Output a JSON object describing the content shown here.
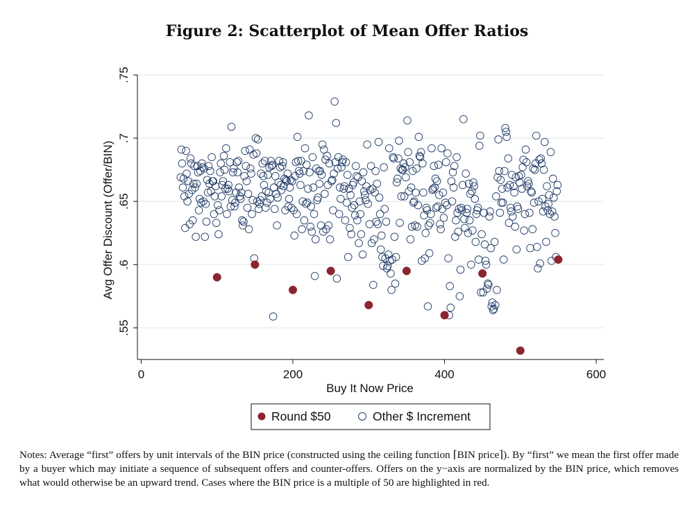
{
  "figure": {
    "title": "Figure 2: Scatterplot of Mean Offer Ratios",
    "notes": "Notes: Average “first” offers by unit intervals of the BIN price (constructed using the ceiling function ⌈BIN price⌉). By “first” we mean the first offer made by a buyer which may initiate a sequence of subsequent offers and counter-offers. Offers on the y−axis are normalized by the BIN price, which removes what would otherwise be an upward trend. Cases where the BIN price is a multiple of 50 are highlighted in red."
  },
  "colors": {
    "highlight": "#8b2530",
    "marker_edge": "#1f3a66",
    "grid": "#e4ecee",
    "axis": "#111111"
  },
  "chart_data": {
    "type": "scatter",
    "title": "",
    "xlabel": "Buy It Now Price",
    "ylabel": "Avg Offer Discount (Offer/BIN)",
    "xlim": [
      -5,
      610
    ],
    "ylim": [
      0.525,
      0.75
    ],
    "xticks": [
      0,
      200,
      400,
      600
    ],
    "yticks": [
      0.55,
      0.6,
      0.65,
      0.7,
      0.75
    ],
    "ytick_labels": [
      ".55",
      ".6",
      ".65",
      ".7",
      ".75"
    ],
    "grid": true,
    "legend": {
      "placement": "bottom-center",
      "entries": [
        "Round $50",
        "Other $ Increment"
      ]
    },
    "series": [
      {
        "name": "Round $50",
        "marker": "filled-circle",
        "x": [
          100,
          150,
          200,
          250,
          300,
          350,
          400,
          450,
          500,
          550
        ],
        "y": [
          0.59,
          0.6,
          0.58,
          0.595,
          0.568,
          0.595,
          0.56,
          0.593,
          0.532,
          0.604
        ]
      },
      {
        "name": "Other $ Increment",
        "marker": "hollow-circle",
        "x_start": 52,
        "x_end": 549,
        "exclude_x": [
          100,
          150,
          200,
          250,
          300,
          350,
          400,
          450,
          500
        ],
        "y": [
          0.669,
          0.691,
          0.68,
          0.661,
          0.668,
          0.654,
          0.629,
          0.69,
          0.672,
          0.65,
          0.666,
          0.656,
          0.632,
          0.684,
          0.68,
          0.659,
          0.635,
          0.664,
          0.678,
          0.661,
          0.622,
          0.664,
          0.678,
          0.673,
          0.643,
          0.652,
          0.674,
          0.649,
          0.68,
          0.677,
          0.65,
          0.676,
          0.622,
          0.648,
          0.634,
          0.667,
          0.657,
          0.678,
          0.664,
          0.674,
          0.658,
          0.685,
          0.666,
          0.666,
          0.64,
          0.654,
          0.662,
          0.633,
          0.647,
          0.624,
          0.643,
          0.673,
          0.68,
          0.654,
          0.663,
          0.666,
          0.686,
          0.675,
          0.66,
          0.692,
          0.64,
          0.66,
          0.663,
          0.658,
          0.681,
          0.646,
          0.709,
          0.651,
          0.673,
          0.676,
          0.646,
          0.649,
          0.657,
          0.681,
          0.673,
          0.682,
          0.661,
          0.654,
          0.652,
          0.657,
          0.635,
          0.631,
          0.634,
          0.67,
          0.69,
          0.678,
          0.666,
          0.645,
          0.656,
          0.628,
          0.691,
          0.676,
          0.672,
          0.64,
          0.651,
          0.687,
          0.605,
          0.7,
          0.688,
          0.65,
          0.699,
          0.644,
          0.648,
          0.651,
          0.672,
          0.654,
          0.68,
          0.67,
          0.663,
          0.682,
          0.645,
          0.658,
          0.649,
          0.671,
          0.657,
          0.677,
          0.652,
          0.682,
          0.678,
          0.679,
          0.559,
          0.661,
          0.644,
          0.67,
          0.656,
          0.631,
          0.653,
          0.665,
          0.682,
          0.677,
          0.663,
          0.659,
          0.678,
          0.681,
          0.662,
          0.668,
          0.643,
          0.667,
          0.666,
          0.672,
          0.646,
          0.652,
          0.661,
          0.667,
          0.645,
          0.666,
          0.643,
          0.623,
          0.67,
          0.681,
          0.64,
          0.701,
          0.682,
          0.674,
          0.672,
          0.663,
          0.682,
          0.628,
          0.65,
          0.674,
          0.635,
          0.692,
          0.648,
          0.679,
          0.649,
          0.66,
          0.718,
          0.673,
          0.63,
          0.646,
          0.626,
          0.685,
          0.661,
          0.64,
          0.591,
          0.62,
          0.676,
          0.651,
          0.653,
          0.674,
          0.664,
          0.674,
          0.631,
          0.671,
          0.695,
          0.626,
          0.691,
          0.656,
          0.683,
          0.628,
          0.686,
          0.663,
          0.631,
          0.68,
          0.62,
          0.666,
          0.667,
          0.643,
          0.672,
          0.729,
          0.681,
          0.712,
          0.589,
          0.676,
          0.685,
          0.64,
          0.661,
          0.652,
          0.677,
          0.681,
          0.683,
          0.66,
          0.662,
          0.635,
          0.681,
          0.649,
          0.671,
          0.606,
          0.66,
          0.629,
          0.655,
          0.624,
          0.645,
          0.663,
          0.665,
          0.647,
          0.639,
          0.678,
          0.67,
          0.635,
          0.669,
          0.617,
          0.65,
          0.64,
          0.624,
          0.666,
          0.608,
          0.673,
          0.658,
          0.655,
          0.651,
          0.662,
          0.695,
          0.648,
          0.632,
          0.659,
          0.678,
          0.617,
          0.66,
          0.584,
          0.62,
          0.657,
          0.674,
          0.634,
          0.664,
          0.632,
          0.697,
          0.653,
          0.64,
          0.612,
          0.623,
          0.606,
          0.599,
          0.677,
          0.644,
          0.605,
          0.634,
          0.597,
          0.599,
          0.608,
          0.692,
          0.603,
          0.593,
          0.58,
          0.604,
          0.685,
          0.684,
          0.622,
          0.585,
          0.606,
          0.665,
          0.668,
          0.684,
          0.698,
          0.633,
          0.676,
          0.654,
          0.675,
          0.675,
          0.68,
          0.654,
          0.677,
          0.669,
          0.714,
          0.689,
          0.658,
          0.681,
          0.62,
          0.661,
          0.63,
          0.674,
          0.649,
          0.65,
          0.631,
          0.657,
          0.676,
          0.63,
          0.647,
          0.701,
          0.686,
          0.685,
          0.689,
          0.603,
          0.68,
          0.657,
          0.639,
          0.605,
          0.625,
          0.645,
          0.643,
          0.567,
          0.631,
          0.609,
          0.633,
          0.64,
          0.692,
          0.659,
          0.66,
          0.678,
          0.661,
          0.668,
          0.645,
          0.666,
          0.646,
          0.679,
          0.655,
          0.632,
          0.628,
          0.692,
          0.644,
          0.657,
          0.637,
          0.649,
          0.681,
          0.647,
          0.688,
          0.605,
          0.56,
          0.583,
          0.566,
          0.666,
          0.65,
          0.673,
          0.661,
          0.678,
          0.622,
          0.635,
          0.685,
          0.641,
          0.626,
          0.644,
          0.575,
          0.596,
          0.645,
          0.643,
          0.663,
          0.715,
          0.636,
          0.629,
          0.672,
          0.641,
          0.644,
          0.625,
          0.664,
          0.635,
          0.656,
          0.6,
          0.658,
          0.627,
          0.665,
          0.662,
          0.652,
          0.618,
          0.64,
          0.643,
          0.645,
          0.604,
          0.694,
          0.702,
          0.578,
          0.624,
          0.578,
          0.641,
          0.616,
          0.603,
          0.6,
          0.581,
          0.585,
          0.584,
          0.638,
          0.642,
          0.613,
          0.567,
          0.57,
          0.564,
          0.565,
          0.618,
          0.568,
          0.654,
          0.58,
          0.669,
          0.699,
          0.674,
          0.641,
          0.667,
          0.649,
          0.66,
          0.649,
          0.604,
          0.674,
          0.708,
          0.705,
          0.701,
          0.661,
          0.684,
          0.633,
          0.663,
          0.645,
          0.642,
          0.671,
          0.638,
          0.662,
          0.657,
          0.63,
          0.669,
          0.612,
          0.646,
          0.644,
          0.67,
          0.665,
          0.671,
          0.66,
          0.677,
          0.683,
          0.627,
          0.64,
          0.691,
          0.681,
          0.662,
          0.666,
          0.664,
          0.641,
          0.613,
          0.658,
          0.657,
          0.628,
          0.676,
          0.649,
          0.675,
          0.68,
          0.702,
          0.614,
          0.597,
          0.65,
          0.683,
          0.601,
          0.684,
          0.68,
          0.652,
          0.642,
          0.675,
          0.697,
          0.646,
          0.618,
          0.662,
          0.643,
          0.648,
          0.655,
          0.64,
          0.689,
          0.603,
          0.642,
          0.668,
          0.653,
          0.638,
          0.625,
          0.606,
          0.658,
          0.663,
          0.647,
          0.675,
          0.667,
          0.66,
          0.659,
          0.662,
          0.641,
          0.669,
          0.648,
          0.65,
          0.656,
          0.652,
          0.674,
          0.627,
          0.684,
          0.641,
          0.661,
          0.665,
          0.653,
          0.623,
          0.604,
          0.611,
          0.652,
          0.662,
          0.66,
          0.662,
          0.689,
          0.661,
          0.652,
          0.641,
          0.68,
          0.646,
          0.63,
          0.633,
          0.683,
          0.631,
          0.704,
          0.607,
          0.665,
          0.656,
          0.681,
          0.621,
          0.647,
          0.605,
          0.654,
          0.664,
          0.674,
          0.671,
          0.648,
          0.662,
          0.605,
          0.657,
          0.661,
          0.654,
          0.656,
          0.666,
          0.655
        ]
      }
    ]
  }
}
